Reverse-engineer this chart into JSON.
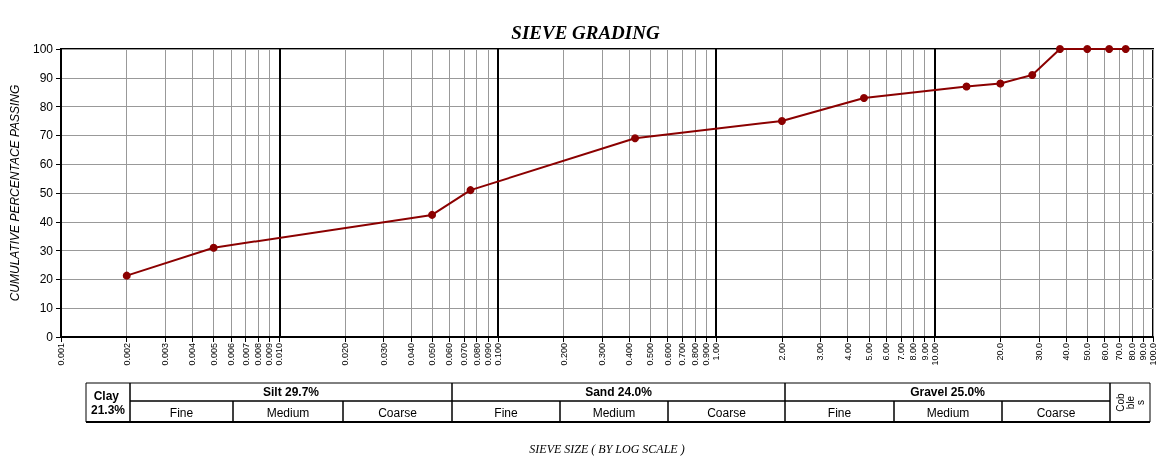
{
  "chart_data": {
    "type": "line",
    "title": "SIEVE GRADING",
    "ylabel": "CUMULATIVE PERCENTACE PASSING",
    "x": [
      0.002,
      0.005,
      0.05,
      0.075,
      0.425,
      2.0,
      4.75,
      14,
      20,
      28,
      37.5,
      50,
      63,
      75
    ],
    "series": [
      {
        "color": "#8b0000",
        "values": [
          21.3,
          31,
          42.4,
          51,
          69,
          75,
          83,
          87,
          88,
          91,
          100,
          100,
          100,
          100
        ]
      }
    ],
    "log": "x",
    "marker": "circle",
    "line_style": "solid",
    "grid": true,
    "xlim": [
      0.001,
      100
    ],
    "ylim": [
      0,
      100
    ],
    "yticks": [
      0,
      10,
      20,
      30,
      40,
      50,
      60,
      70,
      80,
      90,
      100
    ],
    "xticks": [
      {
        "value": 0.001,
        "label": "0.001"
      },
      {
        "value": 0.002,
        "label": "0.002"
      },
      {
        "value": 0.003,
        "label": "0.003"
      },
      {
        "value": 0.004,
        "label": "0.004"
      },
      {
        "value": 0.005,
        "label": "0.005"
      },
      {
        "value": 0.006,
        "label": "0.006"
      },
      {
        "value": 0.007,
        "label": "0.007"
      },
      {
        "value": 0.008,
        "label": "0.008"
      },
      {
        "value": 0.009,
        "label": "0.009"
      },
      {
        "value": 0.01,
        "label": "0.010"
      },
      {
        "value": 0.02,
        "label": "0.020"
      },
      {
        "value": 0.03,
        "label": "0.030"
      },
      {
        "value": 0.04,
        "label": "0.040"
      },
      {
        "value": 0.05,
        "label": "0.050"
      },
      {
        "value": 0.06,
        "label": "0.060"
      },
      {
        "value": 0.07,
        "label": "0.070"
      },
      {
        "value": 0.08,
        "label": "0.080"
      },
      {
        "value": 0.09,
        "label": "0.090"
      },
      {
        "value": 0.1,
        "label": "0.100"
      },
      {
        "value": 0.2,
        "label": "0.200"
      },
      {
        "value": 0.3,
        "label": "0.300"
      },
      {
        "value": 0.4,
        "label": "0.400"
      },
      {
        "value": 0.5,
        "label": "0.500"
      },
      {
        "value": 0.6,
        "label": "0.600"
      },
      {
        "value": 0.7,
        "label": "0.700"
      },
      {
        "value": 0.8,
        "label": "0.800"
      },
      {
        "value": 0.9,
        "label": "0.900"
      },
      {
        "value": 1,
        "label": "1.00"
      },
      {
        "value": 2,
        "label": "2.00"
      },
      {
        "value": 3,
        "label": "3.00"
      },
      {
        "value": 4,
        "label": "4.00"
      },
      {
        "value": 5,
        "label": "5.00"
      },
      {
        "value": 6,
        "label": "6.00"
      },
      {
        "value": 7,
        "label": "7.00"
      },
      {
        "value": 8,
        "label": "8.00"
      },
      {
        "value": 9,
        "label": "9.00"
      },
      {
        "value": 10,
        "label": "10.00"
      },
      {
        "value": 20,
        "label": "20.0"
      },
      {
        "value": 30,
        "label": "30.0"
      },
      {
        "value": 40,
        "label": "40.0"
      },
      {
        "value": 50,
        "label": "50.0"
      },
      {
        "value": 60,
        "label": "60.0"
      },
      {
        "value": 70,
        "label": "70.0"
      },
      {
        "value": 80,
        "label": "80.0"
      },
      {
        "value": 90,
        "label": "90.0"
      },
      {
        "value": 100,
        "label": "100.0"
      }
    ],
    "annotations": [
      "SIEVE SIZE ( BY LOG SCALE )",
      "Clay 21.3%",
      "Silt 29.7%",
      "Fine",
      "Medium",
      "Coarse",
      "Sand 24.0%",
      "Fine",
      "Medium",
      "Coarse",
      "Gravel 25.0%",
      "Fine",
      "Medium",
      "Coarse",
      "Cobbles"
    ]
  }
}
